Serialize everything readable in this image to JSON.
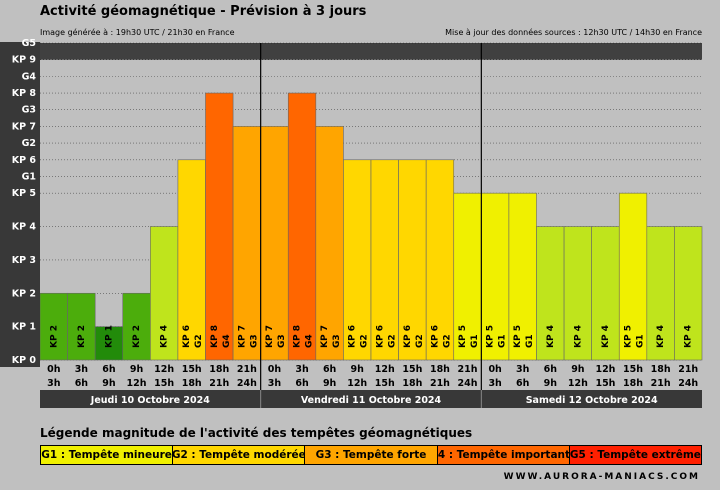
{
  "title": "Activité géomagnétique - Prévision à 3 jours",
  "generated": "Image générée à : 19h30 UTC / 21h30 en France",
  "updated": "Mise à jour des données sources : 12h30 UTC / 14h30 en France",
  "legend_title": "Légende magnitude de l'activité des tempêtes géomagnétiques",
  "legend": [
    {
      "label": "G1 : Tempête mineure",
      "color": "#f0f000"
    },
    {
      "label": "G2 : Tempête modérée",
      "color": "#ffd700"
    },
    {
      "label": "G3 : Tempête forte",
      "color": "#ffa500"
    },
    {
      "label": "G4 : Tempête importante",
      "color": "#ff6600"
    },
    {
      "label": "G5 : Tempête extrême",
      "color": "#ff2000"
    }
  ],
  "site": "WWW.AURORA-MANIACS.COM",
  "chart_data": {
    "type": "bar",
    "y_ticks": [
      {
        "value": 0,
        "label": "KP 0"
      },
      {
        "value": 1,
        "label": "KP 1"
      },
      {
        "value": 2,
        "label": "KP 2"
      },
      {
        "value": 3,
        "label": "KP 3"
      },
      {
        "value": 4,
        "label": "KP 4"
      },
      {
        "value": 5,
        "label": "KP 5"
      },
      {
        "value": 5.5,
        "label": "G1"
      },
      {
        "value": 6,
        "label": "KP 6"
      },
      {
        "value": 6.5,
        "label": "G2"
      },
      {
        "value": 7,
        "label": "KP 7"
      },
      {
        "value": 7.5,
        "label": "G3"
      },
      {
        "value": 8,
        "label": "KP 8"
      },
      {
        "value": 8.5,
        "label": "G4"
      },
      {
        "value": 9,
        "label": "KP 9"
      },
      {
        "value": 9.5,
        "label": "G5"
      }
    ],
    "ylim": [
      0,
      9.5
    ],
    "days": [
      "Jeudi 10 Octobre 2024",
      "Vendredi 11 Octobre 2024",
      "Samedi 12 Octobre 2024"
    ],
    "time_slots": [
      [
        "0h",
        "3h"
      ],
      [
        "3h",
        "6h"
      ],
      [
        "6h",
        "9h"
      ],
      [
        "9h",
        "12h"
      ],
      [
        "12h",
        "15h"
      ],
      [
        "15h",
        "18h"
      ],
      [
        "18h",
        "21h"
      ],
      [
        "21h",
        "24h"
      ]
    ],
    "bars": [
      {
        "kp": 2,
        "label": "KP 2",
        "color": "#4cad0c"
      },
      {
        "kp": 2,
        "label": "KP 2",
        "color": "#4cad0c"
      },
      {
        "kp": 1,
        "label": "KP 1",
        "color": "#228b0a"
      },
      {
        "kp": 2,
        "label": "KP 2",
        "color": "#4cad0c"
      },
      {
        "kp": 4,
        "label": "KP 4",
        "color": "#bfe41c"
      },
      {
        "kp": 6,
        "label": "KP 6",
        "g": "G2",
        "color": "#ffd700"
      },
      {
        "kp": 8,
        "label": "KP 8",
        "g": "G4",
        "color": "#ff6600"
      },
      {
        "kp": 7,
        "label": "KP 7",
        "g": "G3",
        "color": "#ffa500"
      },
      {
        "kp": 7,
        "label": "KP 7",
        "g": "G3",
        "color": "#ffa500"
      },
      {
        "kp": 8,
        "label": "KP 8",
        "g": "G4",
        "color": "#ff6600"
      },
      {
        "kp": 7,
        "label": "KP 7",
        "g": "G3",
        "color": "#ffa500"
      },
      {
        "kp": 6,
        "label": "KP 6",
        "g": "G2",
        "color": "#ffd700"
      },
      {
        "kp": 6,
        "label": "KP 6",
        "g": "G2",
        "color": "#ffd700"
      },
      {
        "kp": 6,
        "label": "KP 6",
        "g": "G2",
        "color": "#ffd700"
      },
      {
        "kp": 6,
        "label": "KP 6",
        "g": "G2",
        "color": "#ffd700"
      },
      {
        "kp": 5,
        "label": "KP 5",
        "g": "G1",
        "color": "#f0f000"
      },
      {
        "kp": 5,
        "label": "KP 5",
        "g": "G1",
        "color": "#f0f000"
      },
      {
        "kp": 5,
        "label": "KP 5",
        "g": "G1",
        "color": "#f0f000"
      },
      {
        "kp": 4,
        "label": "KP 4",
        "color": "#bfe41c"
      },
      {
        "kp": 4,
        "label": "KP 4",
        "color": "#bfe41c"
      },
      {
        "kp": 4,
        "label": "KP 4",
        "color": "#bfe41c"
      },
      {
        "kp": 5,
        "label": "KP 5",
        "g": "G1",
        "color": "#f0f000"
      },
      {
        "kp": 4,
        "label": "KP 4",
        "color": "#bfe41c"
      },
      {
        "kp": 4,
        "label": "KP 4",
        "color": "#bfe41c"
      }
    ],
    "colors": {
      "background": "#c0c0c0",
      "top_band": "#404040",
      "panel": "#383838"
    }
  }
}
